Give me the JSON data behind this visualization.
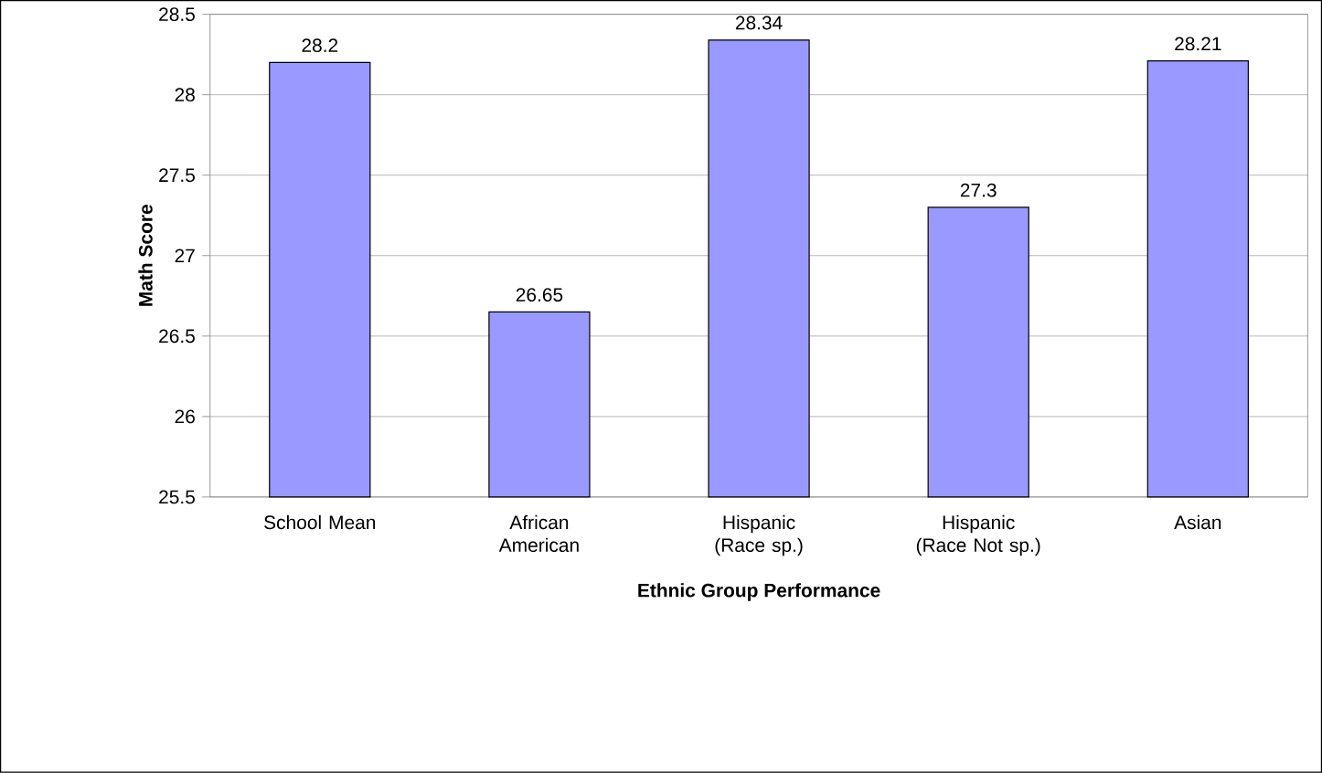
{
  "chart_data": {
    "type": "bar",
    "xlabel": "Ethnic Group Performance",
    "ylabel": "Math Score",
    "categories": [
      "School Mean",
      "African American",
      "Hispanic (Race sp.)",
      "Hispanic (Race Not sp.)",
      "Asian"
    ],
    "values": [
      28.2,
      26.65,
      28.34,
      27.3,
      28.21
    ],
    "value_labels": [
      "28.2",
      "26.65",
      "28.34",
      "27.3",
      "28.21"
    ],
    "color": "#9999ff",
    "ylim": [
      25.5,
      28.5
    ],
    "yticks": [
      25.5,
      26,
      26.5,
      27,
      27.5,
      28,
      28.5
    ],
    "grid": "y"
  }
}
